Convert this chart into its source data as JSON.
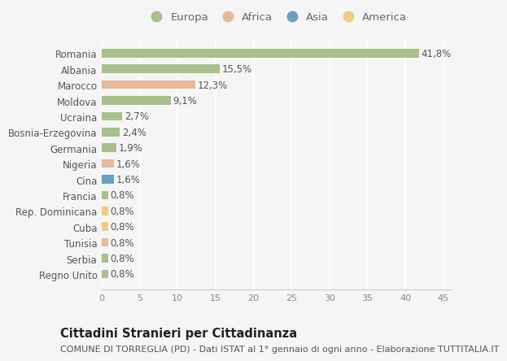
{
  "categories": [
    "Romania",
    "Albania",
    "Marocco",
    "Moldova",
    "Ucraina",
    "Bosnia-Erzegovina",
    "Germania",
    "Nigeria",
    "Cina",
    "Francia",
    "Rep. Dominicana",
    "Cuba",
    "Tunisia",
    "Serbia",
    "Regno Unito"
  ],
  "values": [
    41.8,
    15.5,
    12.3,
    9.1,
    2.7,
    2.4,
    1.9,
    1.6,
    1.6,
    0.8,
    0.8,
    0.8,
    0.8,
    0.8,
    0.8
  ],
  "labels": [
    "41,8%",
    "15,5%",
    "12,3%",
    "9,1%",
    "2,7%",
    "2,4%",
    "1,9%",
    "1,6%",
    "1,6%",
    "0,8%",
    "0,8%",
    "0,8%",
    "0,8%",
    "0,8%",
    "0,8%"
  ],
  "continents": [
    "Europa",
    "Europa",
    "Africa",
    "Europa",
    "Europa",
    "Europa",
    "Europa",
    "Africa",
    "Asia",
    "Europa",
    "America",
    "America",
    "Africa",
    "Europa",
    "Europa"
  ],
  "continent_colors": {
    "Europa": "#a8c08a",
    "Africa": "#e8b898",
    "Asia": "#6a9fc0",
    "America": "#f0cc80"
  },
  "legend_order": [
    "Europa",
    "Africa",
    "Asia",
    "America"
  ],
  "xlim": [
    0,
    46
  ],
  "xticks": [
    0,
    5,
    10,
    15,
    20,
    25,
    30,
    35,
    40,
    45
  ],
  "title": "Cittadini Stranieri per Cittadinanza",
  "subtitle": "COMUNE DI TORREGLIA (PD) - Dati ISTAT al 1° gennaio di ogni anno - Elaborazione TUTTITALIA.IT",
  "background_color": "#f5f5f5",
  "bar_height": 0.55,
  "label_fontsize": 8.5,
  "title_fontsize": 10.5,
  "subtitle_fontsize": 8,
  "ytick_fontsize": 8.5,
  "xtick_fontsize": 8,
  "legend_fontsize": 9.5
}
